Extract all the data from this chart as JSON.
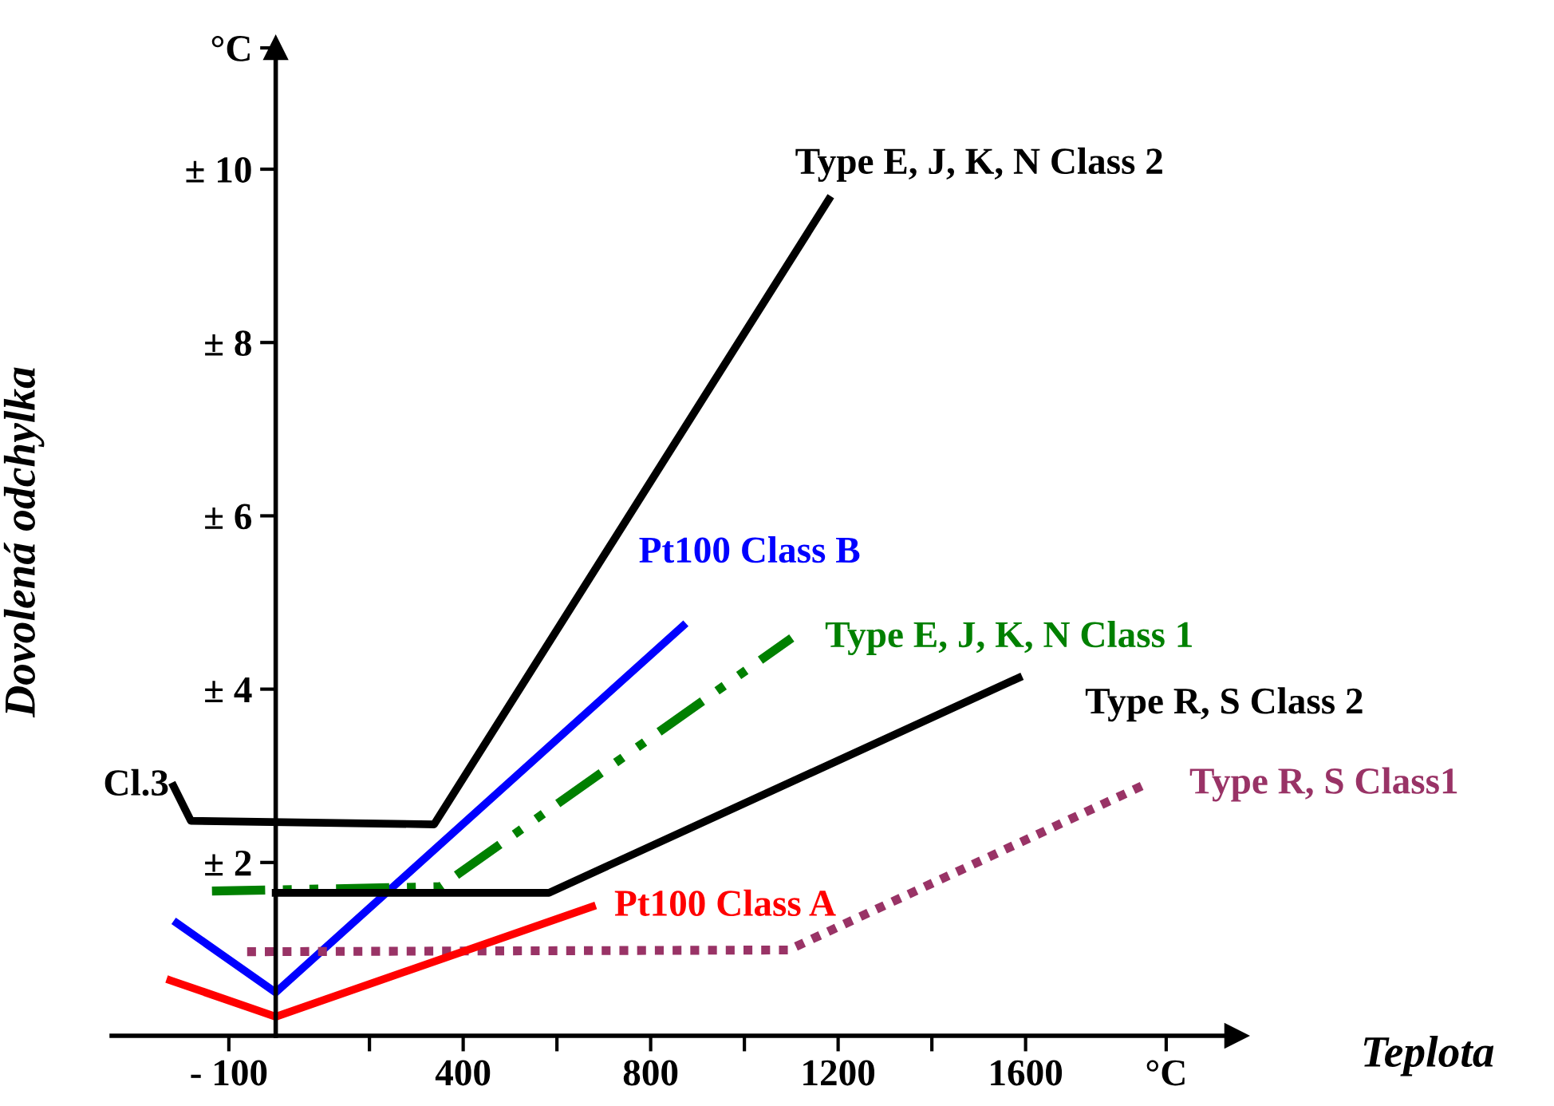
{
  "chart_data": {
    "type": "line",
    "xlabel": "Teplota",
    "ylabel": "Dovolená odchylka",
    "xlim": [
      -350,
      2050
    ],
    "ylim": [
      0,
      11.4
    ],
    "xticks": [
      {
        "value": -100,
        "label": "- 100"
      },
      {
        "value": 200,
        "label": null
      },
      400,
      {
        "value": 600,
        "label": null
      },
      800,
      {
        "value": 1000,
        "label": null
      },
      1200,
      {
        "value": 1400,
        "label": null
      },
      1600,
      {
        "value": 1900,
        "label": "°C"
      }
    ],
    "yticks": [
      {
        "value": 2,
        "label": "± 2"
      },
      {
        "value": 4,
        "label": "± 4"
      },
      {
        "value": 6,
        "label": "± 6"
      },
      {
        "value": 8,
        "label": "± 8"
      },
      {
        "value": 10,
        "label": "± 10"
      },
      {
        "value": 11.4,
        "label": "°C"
      }
    ],
    "grid": false,
    "legend": false,
    "marker": "none",
    "series": [
      {
        "name": "Type E, J, K, N Class 2",
        "color": "#000000",
        "line_style": "solid",
        "x": [
          -218,
          -181,
          338,
          1180
        ],
        "values": [
          2.88,
          2.48,
          2.44,
          9.65
        ]
      },
      {
        "name": "Pt100 Class B",
        "color": "#0000ff",
        "line_style": "solid",
        "x": [
          -211,
          0,
          869
        ],
        "values": [
          1.3,
          0.5,
          4.73
        ]
      },
      {
        "name": "Type E, J, K, N Class 1",
        "color": "#008000",
        "line_style": "dashdotdot",
        "x": [
          -136,
          351,
          1101
        ],
        "values": [
          1.67,
          1.72,
          4.59
        ]
      },
      {
        "name": "Type R, S Class 2",
        "color": "#000000",
        "line_style": "solid",
        "x": [
          0,
          583,
          1585
        ],
        "values": [
          1.65,
          1.65,
          4.13
        ]
      },
      {
        "name": "Type R, S Class1",
        "color": "#993366",
        "line_style": "dotted",
        "x": [
          -61,
          1094,
          1855
        ],
        "values": [
          0.97,
          0.99,
          2.9
        ]
      },
      {
        "name": "Pt100 Class A",
        "color": "#ff0000",
        "line_style": "solid",
        "x": [
          -225,
          0,
          675
        ],
        "values": [
          0.64,
          0.22,
          1.49
        ]
      }
    ],
    "annotations": [
      {
        "text": "Cl.3",
        "x": -218,
        "y": 2.88
      }
    ]
  }
}
